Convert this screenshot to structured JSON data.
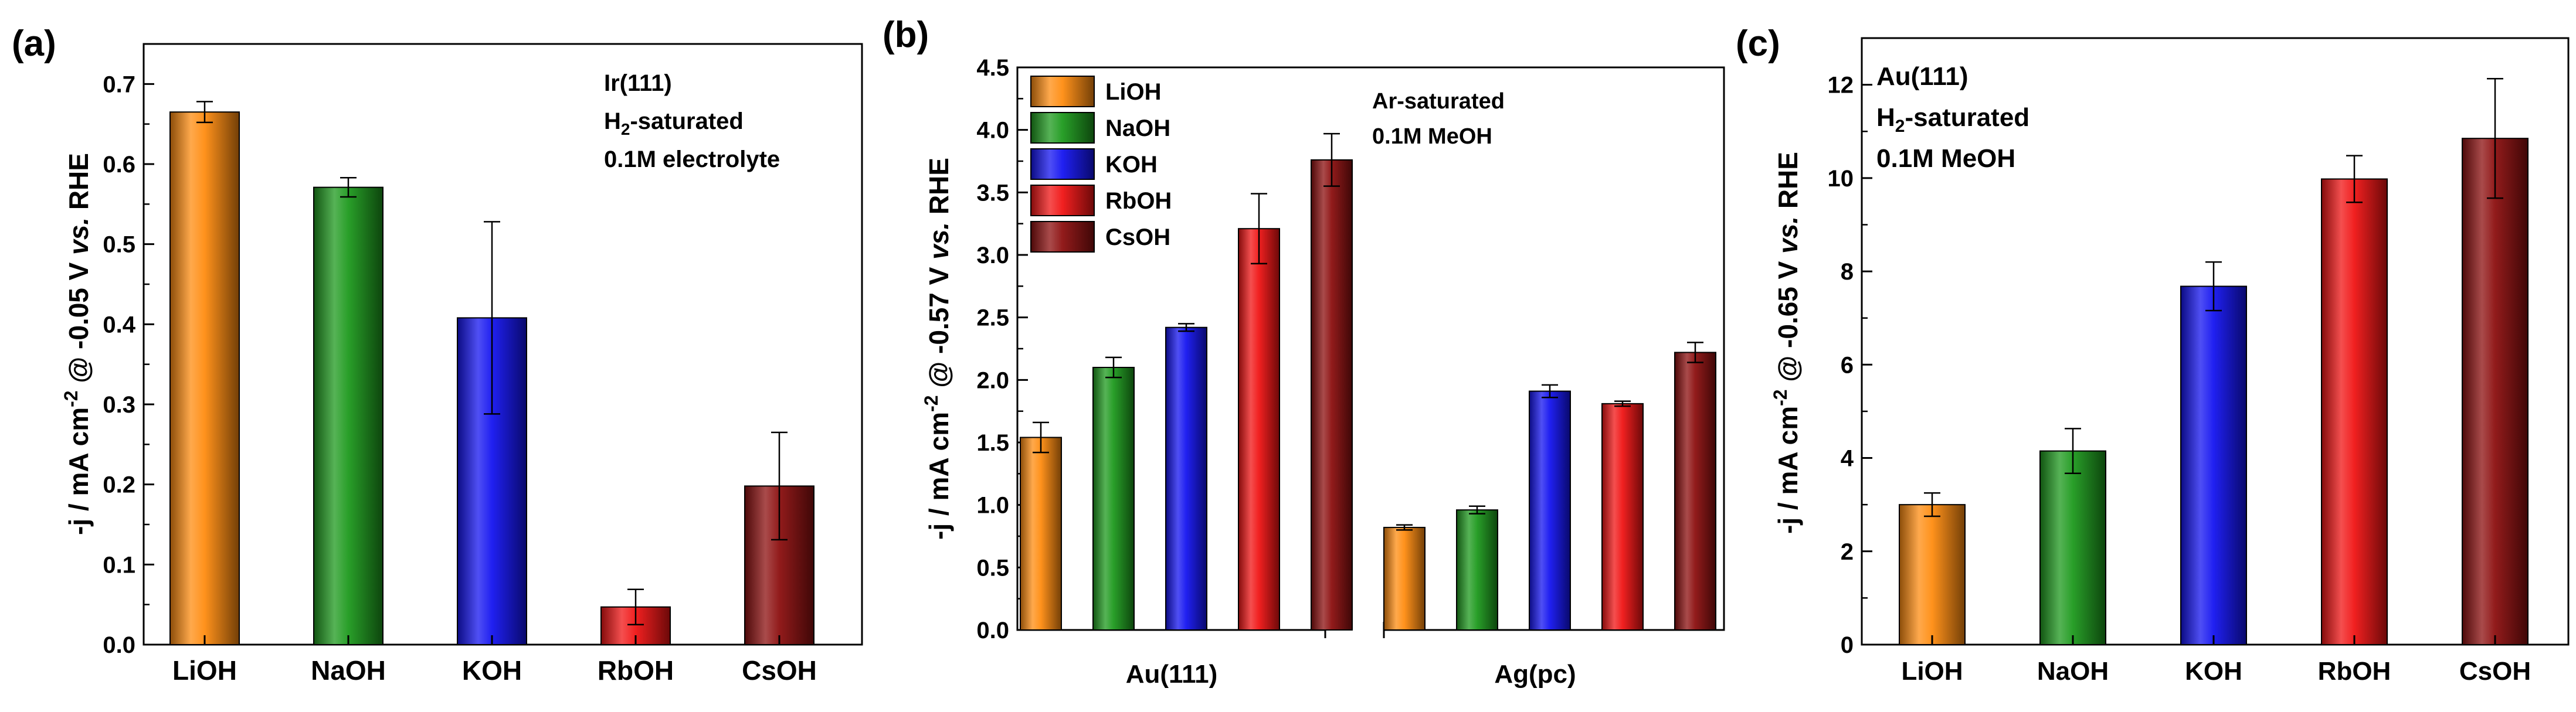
{
  "colors": {
    "LiOH": "#ff8c10",
    "NaOH": "#1e9a1e",
    "KOH": "#1414f0",
    "RbOH": "#f01414",
    "CsOH": "#8c0f0f"
  },
  "chart_data": [
    {
      "panel": "(a)",
      "type": "bar",
      "categories": [
        "LiOH",
        "NaOH",
        "KOH",
        "RbOH",
        "CsOH"
      ],
      "values": [
        0.665,
        0.571,
        0.408,
        0.047,
        0.198
      ],
      "errors": [
        0.013,
        0.012,
        0.12,
        0.022,
        0.067
      ],
      "ylim": [
        0,
        0.75
      ],
      "yticks": [
        "0.0",
        "0.1",
        "0.2",
        "0.3",
        "0.4",
        "0.5",
        "0.6",
        "0.7"
      ],
      "ylabel": {
        "pre": "-j / mA cm",
        "sup": "-2",
        "mid": " @ -0.05 V ",
        "ital": "vs.",
        "post": " RHE"
      },
      "annotation": [
        "Ir(111)",
        "H2-saturated",
        "0.1M electrolyte"
      ]
    },
    {
      "panel": "(b)",
      "type": "bar",
      "groups": [
        "Au(111)",
        "Ag(pc)"
      ],
      "series": [
        {
          "name": "LiOH",
          "values": [
            1.54,
            0.82
          ],
          "errors": [
            0.12,
            0.02
          ]
        },
        {
          "name": "NaOH",
          "values": [
            2.1,
            0.96
          ],
          "errors": [
            0.08,
            0.03
          ]
        },
        {
          "name": "KOH",
          "values": [
            2.42,
            1.91
          ],
          "errors": [
            0.03,
            0.05
          ]
        },
        {
          "name": "RbOH",
          "values": [
            3.21,
            1.81
          ],
          "errors": [
            0.28,
            0.02
          ]
        },
        {
          "name": "CsOH",
          "values": [
            3.76,
            2.22
          ],
          "errors": [
            0.21,
            0.08
          ]
        }
      ],
      "ylim": [
        0,
        4.5
      ],
      "yticks": [
        "0.0",
        "0.5",
        "1.0",
        "1.5",
        "2.0",
        "2.5",
        "3.0",
        "3.5",
        "4.0",
        "4.5"
      ],
      "ylabel": {
        "pre": "-j / mA cm",
        "sup": "-2",
        "mid": " @ -0.57 V ",
        "ital": "vs.",
        "post": " RHE"
      },
      "legend": [
        "LiOH",
        "NaOH",
        "KOH",
        "RbOH",
        "CsOH"
      ],
      "annotation": [
        "Ar-saturated",
        "0.1M MeOH"
      ]
    },
    {
      "panel": "(c)",
      "type": "bar",
      "categories": [
        "LiOH",
        "NaOH",
        "KOH",
        "RbOH",
        "CsOH"
      ],
      "values": [
        3.0,
        4.15,
        7.68,
        9.98,
        10.85
      ],
      "errors": [
        0.25,
        0.48,
        0.52,
        0.5,
        1.28
      ],
      "ylim": [
        0,
        13
      ],
      "yticks": [
        "0",
        "2",
        "4",
        "6",
        "8",
        "10",
        "12"
      ],
      "ylabel": {
        "pre": "-j / mA cm",
        "sup": "-2",
        "mid": " @ -0.65 V ",
        "ital": "vs.",
        "post": " RHE"
      },
      "annotation": [
        "Au(111)",
        "H2-saturated",
        "0.1M MeOH"
      ]
    }
  ]
}
